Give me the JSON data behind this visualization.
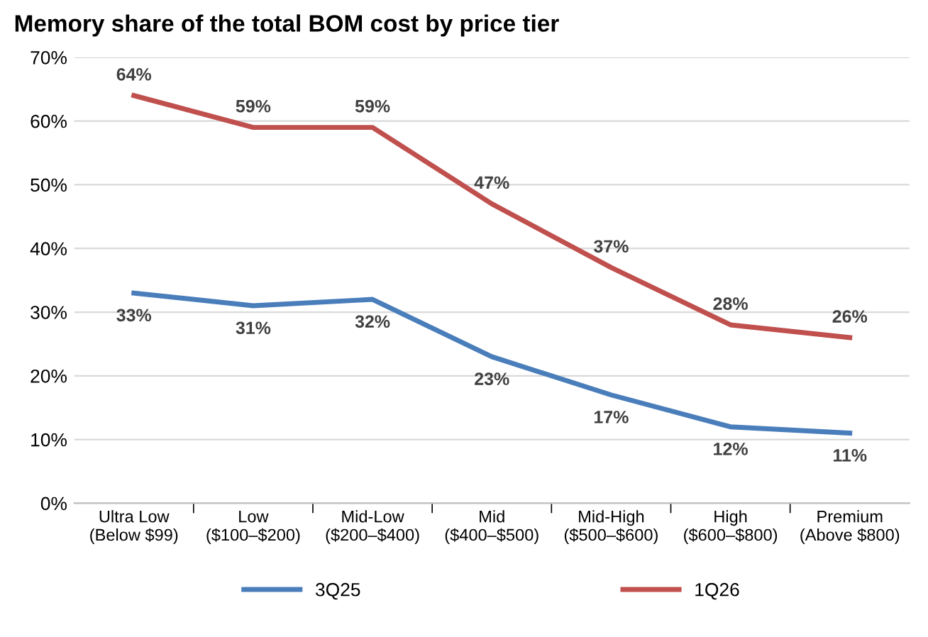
{
  "chart_data": {
    "type": "line",
    "title": "Memory share of the total BOM cost by price tier",
    "categories": [
      "Ultra Low\n(Below $99)",
      "Low\n($100–$200)",
      "Mid-Low\n($200–$400)",
      "Mid\n($400–$500)",
      "Mid-High\n($500–$600)",
      "High\n($600–$800)",
      "Premium\n(Above $800)"
    ],
    "series": [
      {
        "name": "3Q25",
        "color": "#4a7ebb",
        "values": [
          33,
          31,
          32,
          23,
          17,
          12,
          11
        ],
        "value_labels": [
          "33%",
          "31%",
          "32%",
          "23%",
          "17%",
          "12%",
          "11%"
        ]
      },
      {
        "name": "1Q26",
        "color": "#c0504d",
        "values": [
          64,
          59,
          59,
          47,
          37,
          28,
          26
        ],
        "value_labels": [
          "64%",
          "59%",
          "59%",
          "47%",
          "37%",
          "28%",
          "26%"
        ]
      }
    ],
    "ylim": [
      0,
      70
    ],
    "yticks": [
      {
        "value": 0,
        "label": "0%"
      },
      {
        "value": 10,
        "label": "10%"
      },
      {
        "value": 20,
        "label": "20%"
      },
      {
        "value": 30,
        "label": "30%"
      },
      {
        "value": 40,
        "label": "40%"
      },
      {
        "value": 50,
        "label": "50%"
      },
      {
        "value": 60,
        "label": "60%"
      },
      {
        "value": 70,
        "label": "70%"
      }
    ],
    "grid": "y",
    "legend": "bottom",
    "marker": "none",
    "line_style": "solid"
  }
}
